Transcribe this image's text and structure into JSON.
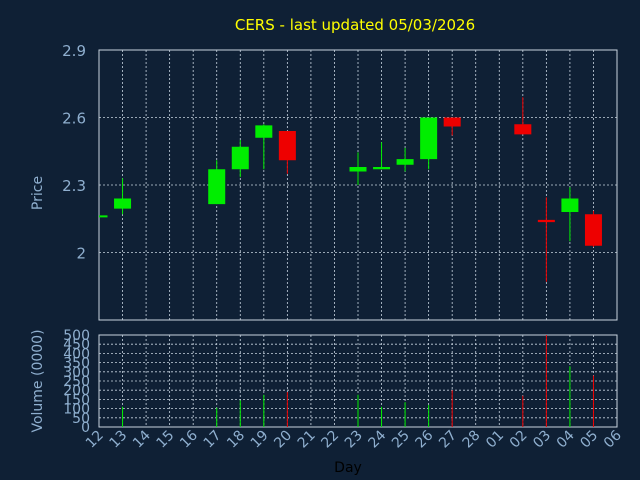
{
  "chart_data": {
    "type": "candlestick",
    "title": "CERS - last updated 05/03/2026",
    "xlabel": "Day",
    "ylabel_price": "Price",
    "ylabel_volume": "Volume (0000)",
    "price_ylim": [
      1.7,
      2.9
    ],
    "price_ticks": [
      "2.9",
      "2.6",
      "2.3",
      "2"
    ],
    "volume_ylim": [
      0,
      500
    ],
    "volume_ticks": [
      "500",
      "450",
      "400",
      "350",
      "300",
      "250",
      "200",
      "150",
      "100",
      "50",
      "0"
    ],
    "x_labels": [
      "12",
      "13",
      "14",
      "15",
      "16",
      "17",
      "18",
      "19",
      "20",
      "21",
      "22",
      "23",
      "24",
      "25",
      "26",
      "27",
      "28",
      "01",
      "02",
      "03",
      "04",
      "05",
      "06"
    ],
    "grid": true,
    "candles": [
      {
        "day": "12",
        "open": 2.165,
        "high": 2.165,
        "low": 2.165,
        "close": 2.165,
        "volume": 0
      },
      {
        "day": "13",
        "open": 2.195,
        "high": 2.33,
        "low": 2.17,
        "close": 2.24,
        "volume": 110
      },
      {
        "day": "17",
        "open": 2.215,
        "high": 2.41,
        "low": 2.215,
        "close": 2.37,
        "volume": 105
      },
      {
        "day": "18",
        "open": 2.37,
        "high": 2.5,
        "low": 2.335,
        "close": 2.47,
        "volume": 145
      },
      {
        "day": "19",
        "open": 2.51,
        "high": 2.57,
        "low": 2.37,
        "close": 2.565,
        "volume": 175
      },
      {
        "day": "20",
        "open": 2.54,
        "high": 2.54,
        "low": 2.35,
        "close": 2.41,
        "volume": 190
      },
      {
        "day": "23",
        "open": 2.36,
        "high": 2.445,
        "low": 2.3,
        "close": 2.38,
        "volume": 175
      },
      {
        "day": "24",
        "open": 2.37,
        "high": 2.49,
        "low": 2.37,
        "close": 2.38,
        "volume": 110
      },
      {
        "day": "25",
        "open": 2.39,
        "high": 2.465,
        "low": 2.36,
        "close": 2.415,
        "volume": 135
      },
      {
        "day": "26",
        "open": 2.415,
        "high": 2.6,
        "low": 2.37,
        "close": 2.6,
        "volume": 120
      },
      {
        "day": "27",
        "open": 2.6,
        "high": 2.6,
        "low": 2.52,
        "close": 2.56,
        "volume": 200
      },
      {
        "day": "02",
        "open": 2.57,
        "high": 2.69,
        "low": 2.53,
        "close": 2.525,
        "volume": 170
      },
      {
        "day": "03",
        "open": 2.145,
        "high": 2.245,
        "low": 1.87,
        "close": 2.135,
        "volume": 500
      },
      {
        "day": "04",
        "open": 2.18,
        "high": 2.29,
        "low": 2.05,
        "close": 2.24,
        "volume": 330
      },
      {
        "day": "05",
        "open": 2.17,
        "high": 2.185,
        "low": 2.025,
        "close": 2.03,
        "volume": 280
      }
    ],
    "colors": {
      "background": "#0f2035",
      "up": "#00ee00",
      "down": "#ee0000",
      "grid": "#c8d4e0",
      "axis_text": "#8fafcf",
      "title": "#ffff00",
      "xlabel": "#000000",
      "frame": "#c8d4e0"
    }
  }
}
